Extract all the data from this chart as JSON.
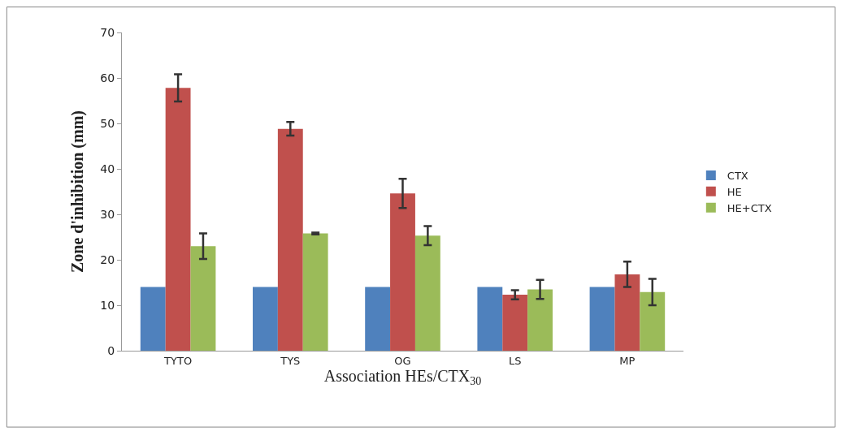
{
  "chart_data": {
    "type": "bar",
    "xlabel": "Association HEs/CTX$_{30}$",
    "ylabel": "Zone d'inhibition (mm)",
    "categories": [
      "TYTO",
      "TYS",
      "OG",
      "LS",
      "MP"
    ],
    "series": [
      {
        "name": "CTX",
        "color": "#4f81bd",
        "values": [
          14,
          14,
          14,
          14,
          14
        ]
      },
      {
        "name": "HE",
        "color": "#c0504d",
        "values": [
          57.8,
          48.8,
          34.6,
          12.3,
          16.8
        ],
        "errors": [
          3,
          1.5,
          3.2,
          1,
          2.8
        ]
      },
      {
        "name": "HE+CTX",
        "color": "#9bbb59",
        "values": [
          23,
          25.8,
          25.3,
          13.5,
          12.9
        ],
        "errors": [
          2.8,
          0.2,
          2.1,
          2.1,
          2.9
        ]
      }
    ],
    "ylim": [
      0,
      70
    ],
    "yticks": [
      0,
      10,
      20,
      30,
      40,
      50,
      60,
      70
    ],
    "legend": "right"
  }
}
